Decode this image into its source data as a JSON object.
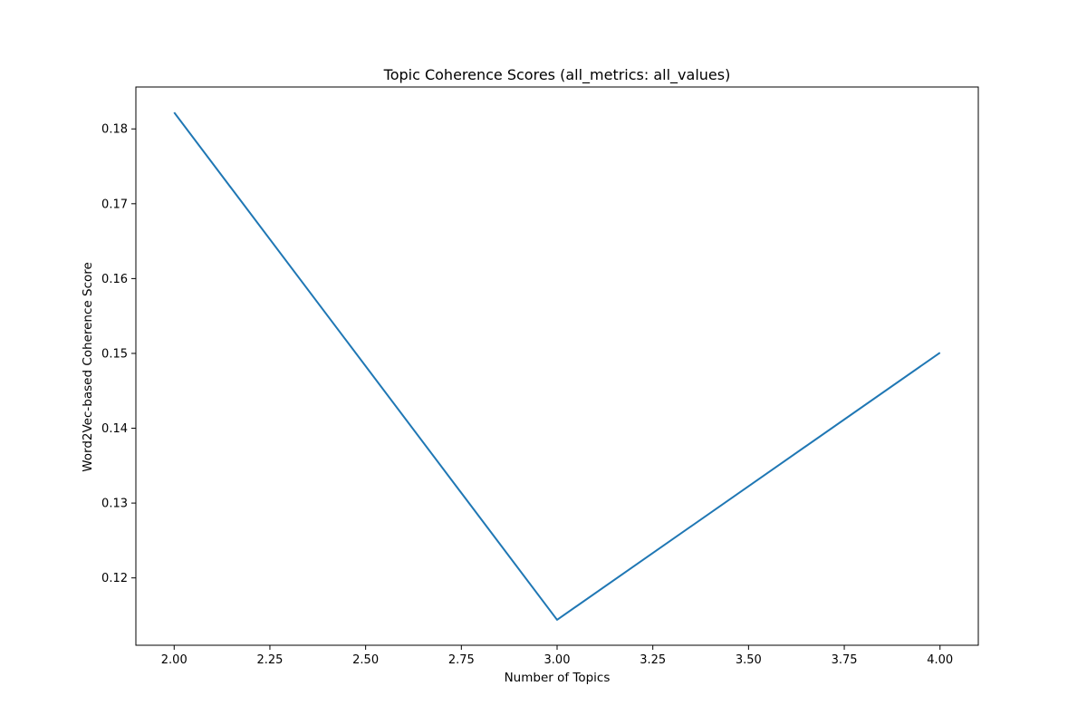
{
  "chart_data": {
    "type": "line",
    "title": "Topic Coherence Scores (all_metrics: all_values)",
    "xlabel": "Number of Topics",
    "ylabel": "Word2Vec-based Coherence Score",
    "x": [
      2.0,
      3.0,
      4.0
    ],
    "series": [
      {
        "color": "#1f77b4",
        "values": [
          0.1822,
          0.1144,
          0.1501
        ]
      }
    ],
    "xlim": [
      1.9,
      4.1
    ],
    "ylim": [
      0.111,
      0.1856
    ],
    "xticks": [
      2.0,
      2.25,
      2.5,
      2.75,
      3.0,
      3.25,
      3.5,
      3.75,
      4.0
    ],
    "xtick_labels": [
      "2.00",
      "2.25",
      "2.50",
      "2.75",
      "3.00",
      "3.25",
      "3.50",
      "3.75",
      "4.00"
    ],
    "yticks": [
      0.12,
      0.13,
      0.14,
      0.15,
      0.16,
      0.17,
      0.18
    ],
    "ytick_labels": [
      "0.12",
      "0.13",
      "0.14",
      "0.15",
      "0.16",
      "0.17",
      "0.18"
    ],
    "grid": false,
    "legend": "none"
  }
}
